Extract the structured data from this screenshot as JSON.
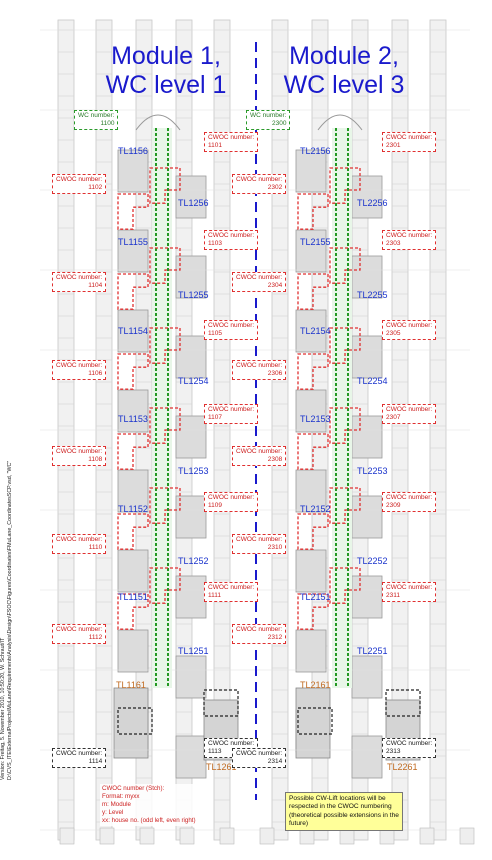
{
  "titles": {
    "module1": [
      "Module 1,",
      "WC level 1"
    ],
    "module2": [
      "Module 2,",
      "WC level 3"
    ]
  },
  "version_text": [
    "Version: Freitag, 5. November 2010, 10:50:20, W. Schraut/IT",
    "D:\\CVS_ITE\\ExternalProjects\\MuLane\\Requirements\\Analysis\\Design\\FSOC\\Figures\\Coordinates\\FMuLane_CoordinatesSCP.vsd, \"WC\""
  ],
  "wc_boxes": [
    {
      "label": "WC number:",
      "number": "1100"
    },
    {
      "label": "WC number:",
      "number": "2300"
    }
  ],
  "tl_labels_blue": [
    "TL1156",
    "TL1256",
    "TL1155",
    "TL1255",
    "TL1154",
    "TL1254",
    "TL1153",
    "TL1253",
    "TL1152",
    "TL1252",
    "TL1151",
    "TL1251",
    "TL2156",
    "TL2256",
    "TL2155",
    "TL2255",
    "TL2154",
    "TL2254",
    "TL2153",
    "TL2253",
    "TL2152",
    "TL2252",
    "TL2151",
    "TL2251"
  ],
  "tl_labels_orange": [
    "TL1161",
    "TL1261",
    "TL2161",
    "TL2261"
  ],
  "cwoc_label": "CWOC number:",
  "cwoc_numbers": [
    "1101",
    "1102",
    "1103",
    "1104",
    "1105",
    "1106",
    "1107",
    "1108",
    "1109",
    "1110",
    "1111",
    "1112",
    "1113",
    "1114",
    "2301",
    "2302",
    "2303",
    "2304",
    "2305",
    "2306",
    "2307",
    "2308",
    "2309",
    "2310",
    "2311",
    "2312",
    "2313",
    "2314"
  ],
  "legend": [
    "CWOC number (Stch):",
    "Format: myxx",
    "m: Module",
    "y: Level",
    "xx: house no. (odd left, even right)"
  ],
  "note": "Possible CW-Lift locations will be respected in the CWOC numbering (theoretical possible extensions in the future)",
  "colors": {
    "title": "#1a1acc",
    "cwoc": "#e03030",
    "wc": "#2a9a2a",
    "tl_blue": "#1a33cc",
    "tl_orange": "#c06a20",
    "note_bg": "#ffff99"
  }
}
